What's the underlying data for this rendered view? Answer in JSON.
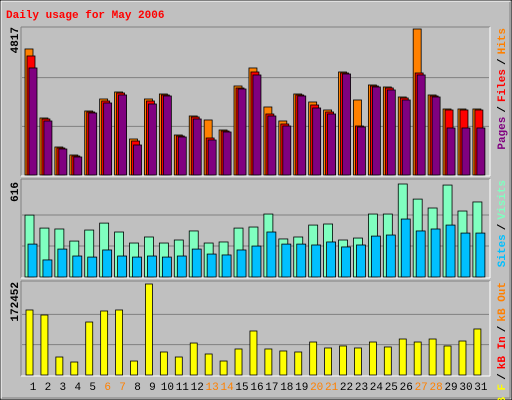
{
  "legend_separator": "/",
  "chart_data": [
    {
      "type": "bar",
      "title": "Daily usage for May 2006",
      "title_color": "#ff0000",
      "ylim": [
        0,
        4817
      ],
      "yticks": [
        4817
      ],
      "series": [
        {
          "name": "Pages",
          "color": "#800080",
          "values": [
            3531,
            1782,
            858,
            594,
            2046,
            2376,
            2640,
            990,
            2343,
            2607,
            1254,
            1848,
            1155,
            1419,
            2838,
            3300,
            1947,
            1617,
            2607,
            2211,
            2013,
            3333,
            1584,
            2904,
            2805,
            2475,
            3300,
            2574,
            1551,
            1551,
            1551
          ]
        },
        {
          "name": "Files",
          "color": "#ff0000",
          "values": [
            3927,
            1848,
            891,
            627,
            2079,
            2442,
            2706,
            1122,
            2442,
            2640,
            1287,
            1914,
            1221,
            1452,
            2871,
            3399,
            2013,
            1683,
            2640,
            2310,
            2079,
            3366,
            1617,
            2937,
            2871,
            2541,
            3366,
            2607,
            2145,
            2145,
            2145
          ]
        },
        {
          "name": "Hits",
          "color": "#ff8000",
          "values": [
            4158,
            1881,
            924,
            660,
            2112,
            2508,
            2739,
            1188,
            2508,
            2673,
            1320,
            1947,
            1815,
            1485,
            2937,
            3531,
            2244,
            1782,
            2673,
            2409,
            2145,
            3399,
            2475,
            2970,
            2904,
            2574,
            4817,
            2640,
            2178,
            2178,
            2178
          ]
        }
      ]
    },
    {
      "type": "bar",
      "ylim": [
        0,
        616
      ],
      "yticks": [
        616
      ],
      "series": [
        {
          "name": "Sites",
          "color": "#00c0ff",
          "values": [
            218,
            113,
            185,
            139,
            132,
            179,
            139,
            132,
            139,
            132,
            139,
            185,
            152,
            146,
            179,
            205,
            298,
            218,
            218,
            212,
            232,
            199,
            212,
            271,
            278,
            384,
            305,
            318,
            344,
            291,
            291
          ]
        },
        {
          "name": "Visits",
          "color": "#80ffc0",
          "values": [
            410,
            324,
            318,
            238,
            311,
            357,
            298,
            225,
            265,
            225,
            245,
            305,
            225,
            232,
            324,
            331,
            417,
            252,
            265,
            344,
            351,
            245,
            258,
            417,
            417,
            616,
            516,
            457,
            609,
            437,
            497
          ]
        }
      ]
    },
    {
      "type": "bar",
      "ylim": [
        0,
        172452
      ],
      "yticks": [
        172452
      ],
      "series": [
        {
          "name": "kB F",
          "color": "#ffff00",
          "values": [
            123200,
            113700,
            34100,
            24600,
            100400,
            121300,
            123200,
            26500,
            172452,
            43600,
            34100,
            60600,
            39800,
            26500,
            49300,
            83400,
            49300,
            45500,
            43600,
            62500,
            51200,
            55000,
            51200,
            62500,
            53100,
            68200,
            62500,
            68200,
            55000,
            64400,
            87200
          ]
        }
      ],
      "extra_legend": [
        {
          "name": "kB In",
          "color": "#ff0000"
        },
        {
          "name": "kB Out",
          "color": "#ff8000"
        }
      ],
      "categories": [
        "1",
        "2",
        "3",
        "4",
        "5",
        "6",
        "7",
        "8",
        "9",
        "10",
        "11",
        "12",
        "13",
        "14",
        "15",
        "16",
        "17",
        "18",
        "19",
        "20",
        "21",
        "22",
        "23",
        "24",
        "25",
        "26",
        "27",
        "28",
        "29",
        "30",
        "31"
      ],
      "label_colors": [
        "#000000",
        "#000000",
        "#000000",
        "#000000",
        "#000000",
        "#ff8000",
        "#ff8000",
        "#000000",
        "#000000",
        "#000000",
        "#000000",
        "#000000",
        "#ff8000",
        "#ff8000",
        "#000000",
        "#000000",
        "#000000",
        "#000000",
        "#000000",
        "#ff8000",
        "#ff8000",
        "#000000",
        "#000000",
        "#000000",
        "#000000",
        "#000000",
        "#ff8000",
        "#ff8000",
        "#000000",
        "#000000",
        "#000000"
      ]
    }
  ]
}
